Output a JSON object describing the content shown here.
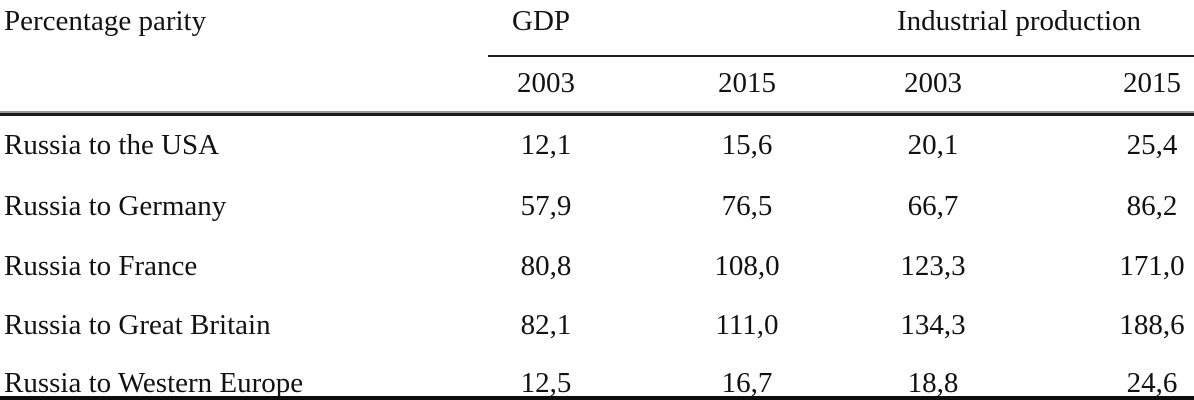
{
  "table": {
    "corner_header": "Percentage parity",
    "group_headers": [
      {
        "label": "GDP"
      },
      {
        "label": "Industrial production"
      }
    ],
    "year_headers": [
      "2003",
      "2015",
      "2003",
      "2015"
    ],
    "rows": [
      {
        "label": "Russia to the USA",
        "values": [
          "12,1",
          "15,6",
          "20,1",
          "25,4"
        ]
      },
      {
        "label": "Russia to Germany",
        "values": [
          "57,9",
          "76,5",
          "66,7",
          "86,2"
        ]
      },
      {
        "label": "Russia to France",
        "values": [
          "80,8",
          "108,0",
          "123,3",
          "171,0"
        ]
      },
      {
        "label": "Russia to Great Britain",
        "values": [
          "82,1",
          "111,0",
          "134,3",
          "188,6"
        ]
      },
      {
        "label": "Russia to Western Europe",
        "values": [
          "12,5",
          "16,7",
          "18,8",
          "24,6"
        ]
      }
    ]
  },
  "chart_data": {
    "type": "table",
    "title": "Percentage parity",
    "column_groups": [
      "GDP",
      "Industrial production"
    ],
    "columns": [
      "GDP 2003",
      "GDP 2015",
      "Industrial production 2003",
      "Industrial production 2015"
    ],
    "categories": [
      "Russia to the USA",
      "Russia to Germany",
      "Russia to France",
      "Russia to Great Britain",
      "Russia to Western Europe"
    ],
    "series": [
      {
        "name": "GDP 2003",
        "values": [
          12.1,
          57.9,
          80.8,
          82.1,
          12.5
        ]
      },
      {
        "name": "GDP 2015",
        "values": [
          15.6,
          76.5,
          108.0,
          111.0,
          16.7
        ]
      },
      {
        "name": "Industrial production 2003",
        "values": [
          20.1,
          66.7,
          123.3,
          134.3,
          18.8
        ]
      },
      {
        "name": "Industrial production 2015",
        "values": [
          25.4,
          86.2,
          171.0,
          188.6,
          24.6
        ]
      }
    ],
    "decimal_separator": ","
  }
}
